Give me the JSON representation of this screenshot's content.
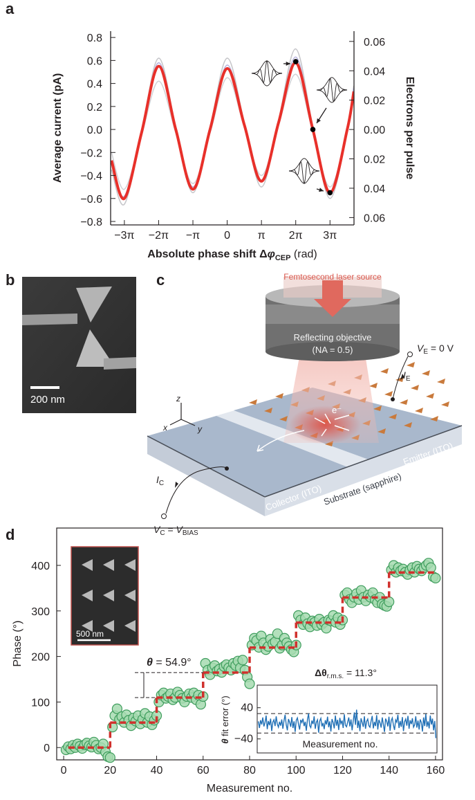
{
  "panel_labels": [
    "a",
    "b",
    "c",
    "d"
  ],
  "chart_data": [
    {
      "type": "line",
      "x_label": {
        "prefix": "Absolute phase shift Δ",
        "symbol": "φ",
        "sub": "CEP",
        "suffix": " (rad)"
      },
      "y_label": "Average current (pA)",
      "y2_label": "Electrons per pulse",
      "x": [
        -10.6,
        -9.42,
        -7.85,
        -6.28,
        -4.71,
        -3.14,
        -1.57,
        0,
        1.57,
        3.14,
        4.71,
        6.28,
        7.85,
        9.42,
        11.0,
        11.6
      ],
      "series": [
        {
          "color": "#d2d2d6",
          "values": [
            -0.2,
            -0.52,
            -0.05,
            0.42,
            -0.03,
            -0.47,
            -0.03,
            0.45,
            0.02,
            -0.4,
            0.04,
            0.48,
            -0.02,
            -0.5,
            -0.02,
            0.28
          ]
        },
        {
          "color": "#c6c6ca",
          "values": [
            -0.35,
            -0.65,
            -0.02,
            0.62,
            0.02,
            -0.55,
            0.02,
            0.62,
            0.06,
            -0.5,
            0.08,
            0.7,
            0.02,
            -0.6,
            0,
            0.38
          ]
        },
        {
          "color": "#b6b2de",
          "values": [
            -0.3,
            -0.58,
            -0.01,
            0.58,
            0.02,
            -0.5,
            0.01,
            0.56,
            0.05,
            -0.44,
            0.06,
            0.63,
            0.01,
            -0.57,
            0,
            0.36
          ]
        },
        {
          "color": "#e8302a",
          "values": [
            -0.27,
            -0.6,
            -0.03,
            0.55,
            0,
            -0.52,
            0,
            0.53,
            0.04,
            -0.45,
            0.06,
            0.58,
            0,
            -0.55,
            0,
            0.33
          ]
        }
      ],
      "points": {
        "x": [
          6.28,
          7.85,
          9.42
        ],
        "values": [
          0.59,
          0,
          -0.55
        ],
        "color": "#000000"
      },
      "xlim": [
        -10.68,
        11.62
      ],
      "ylim": [
        -0.83,
        0.855
      ],
      "y2lim": [
        -0.065,
        0.067
      ],
      "xticks": [
        {
          "value": -9.42,
          "label": "−3π"
        },
        {
          "value": -6.28,
          "label": "−2π"
        },
        {
          "value": -3.14,
          "label": "−π"
        },
        0,
        {
          "value": 3.14,
          "label": "π"
        },
        {
          "value": 6.28,
          "label": "2π"
        },
        {
          "value": 9.42,
          "label": "3π"
        }
      ],
      "yticks": [
        {
          "value": -0.8,
          "label": "−0.8"
        },
        {
          "value": -0.6,
          "label": "−0.6"
        },
        {
          "value": -0.4,
          "label": "−0.4"
        },
        {
          "value": -0.2,
          "label": "−0.2"
        },
        {
          "value": 0,
          "label": "0.0"
        },
        0.2,
        0.4,
        0.6,
        0.8
      ],
      "y2ticks": [
        {
          "value": -0.06,
          "label": "0.06"
        },
        {
          "value": -0.04,
          "label": "0.04"
        },
        {
          "value": -0.02,
          "label": "0.02"
        },
        {
          "value": 0,
          "label": "0.00"
        },
        0.02,
        0.04,
        0.06
      ]
    },
    {
      "type": "scatter",
      "x_label": "Measurement no.",
      "y_label": "Phase (°)",
      "x": [
        1,
        2,
        3,
        4,
        5,
        6,
        7,
        8,
        9,
        10,
        11,
        12,
        13,
        14,
        15,
        16,
        17,
        18,
        19,
        20,
        21,
        22,
        23,
        24,
        25,
        26,
        27,
        28,
        29,
        30,
        31,
        32,
        33,
        34,
        35,
        36,
        37,
        38,
        39,
        40,
        41,
        42,
        43,
        44,
        45,
        46,
        47,
        48,
        49,
        50,
        51,
        52,
        53,
        54,
        55,
        56,
        57,
        58,
        59,
        60,
        61,
        62,
        63,
        64,
        65,
        66,
        67,
        68,
        69,
        70,
        71,
        72,
        73,
        74,
        75,
        76,
        77,
        78,
        79,
        80,
        81,
        82,
        83,
        84,
        85,
        86,
        87,
        88,
        89,
        90,
        91,
        92,
        93,
        94,
        95,
        96,
        97,
        98,
        99,
        100,
        101,
        102,
        103,
        104,
        105,
        106,
        107,
        108,
        109,
        110,
        111,
        112,
        113,
        114,
        115,
        116,
        117,
        118,
        119,
        120,
        121,
        122,
        123,
        124,
        125,
        126,
        127,
        128,
        129,
        130,
        131,
        132,
        133,
        134,
        135,
        136,
        137,
        138,
        139,
        140,
        141,
        142,
        143,
        144,
        145,
        146,
        147,
        148,
        149,
        150,
        151,
        152,
        153,
        154,
        155,
        156,
        157,
        158,
        159,
        160
      ],
      "values": [
        -5,
        2,
        -3,
        5,
        0,
        8,
        3,
        -2,
        6,
        10,
        4,
        1,
        12,
        5,
        -3,
        0,
        8,
        -10,
        -20,
        -22,
        45,
        70,
        85,
        62,
        68,
        55,
        72,
        60,
        48,
        65,
        58,
        70,
        52,
        62,
        75,
        55,
        68,
        50,
        60,
        70,
        100,
        115,
        120,
        108,
        112,
        118,
        105,
        110,
        122,
        115,
        108,
        100,
        112,
        118,
        110,
        120,
        105,
        115,
        95,
        112,
        185,
        170,
        160,
        175,
        180,
        168,
        172,
        165,
        178,
        182,
        175,
        170,
        185,
        180,
        190,
        175,
        192,
        170,
        155,
        140,
        225,
        240,
        235,
        220,
        245,
        230,
        215,
        222,
        238,
        228,
        232,
        250,
        218,
        225,
        240,
        230,
        222,
        215,
        210,
        225,
        290,
        280,
        270,
        285,
        272,
        265,
        278,
        275,
        268,
        282,
        270,
        275,
        262,
        280,
        278,
        290,
        275,
        285,
        270,
        280,
        335,
        340,
        325,
        318,
        330,
        338,
        325,
        345,
        330,
        322,
        335,
        330,
        340,
        325,
        318,
        330,
        315,
        312,
        310,
        320,
        390,
        400,
        385,
        395,
        388,
        392,
        385,
        380,
        390,
        395,
        385,
        398,
        392,
        388,
        395,
        400,
        405,
        395,
        375,
        372
      ],
      "color": "#a6dbb0",
      "steps": {
        "bins": [
          2,
          20,
          40,
          60,
          80,
          100,
          120,
          140,
          160
        ],
        "values": [
          0,
          54.9,
          109.8,
          164.7,
          219.6,
          274.5,
          329.4,
          384.3
        ],
        "color": "#d0312d"
      },
      "annotation": {
        "symbol": "θ",
        "text": " = 54.9°"
      },
      "inset_scale_label": "500 nm",
      "xlim": [
        -3,
        163
      ],
      "ylim": [
        -27,
        482
      ],
      "xticks": [
        0,
        20,
        40,
        60,
        80,
        100,
        120,
        140,
        160
      ],
      "yticks": [
        0,
        100,
        200,
        300,
        400
      ]
    },
    {
      "type": "line",
      "title": {
        "prefix": "Δθ",
        "sub": "r.m.s.",
        "suffix": " = 11.3°"
      },
      "x_label": "Measurement no.",
      "y_label": {
        "symbol": "θ",
        "text": " fit error (°)"
      },
      "x": [
        1,
        2,
        3,
        4,
        5,
        6,
        7,
        8,
        9,
        10,
        11,
        12,
        13,
        14,
        15,
        16,
        17,
        18,
        19,
        20,
        21,
        22,
        23,
        24,
        25,
        26,
        27,
        28,
        29,
        30,
        31,
        32,
        33,
        34,
        35,
        36,
        37,
        38,
        39,
        40,
        41,
        42,
        43,
        44,
        45,
        46,
        47,
        48,
        49,
        50,
        51,
        52,
        53,
        54,
        55,
        56,
        57,
        58,
        59,
        60,
        61,
        62,
        63,
        64,
        65,
        66,
        67,
        68,
        69,
        70,
        71,
        72,
        73,
        74,
        75,
        76,
        77,
        78,
        79,
        80,
        81,
        82,
        83,
        84,
        85,
        86,
        87,
        88,
        89,
        90,
        91,
        92,
        93,
        94,
        95,
        96,
        97,
        98,
        99,
        100,
        101,
        102,
        103,
        104,
        105,
        106,
        107,
        108,
        109,
        110,
        111,
        112,
        113,
        114,
        115,
        116,
        117,
        118,
        119,
        120,
        121,
        122,
        123,
        124,
        125,
        126,
        127,
        128,
        129,
        130,
        131,
        132,
        133,
        134,
        135,
        136,
        137,
        138,
        139,
        140,
        141,
        142,
        143,
        144,
        145,
        146,
        147,
        148,
        149,
        150,
        151,
        152,
        153,
        154,
        155,
        156,
        157,
        158,
        159,
        160
      ],
      "values": [
        5,
        -12,
        8,
        -3,
        15,
        -8,
        2,
        20,
        -15,
        6,
        -5,
        12,
        -20,
        3,
        9,
        -7,
        18,
        -2,
        -10,
        4,
        -6,
        10,
        -14,
        7,
        22,
        -4,
        -18,
        11,
        3,
        -9,
        16,
        -12,
        5,
        -22,
        8,
        14,
        -3,
        -16,
        9,
        2,
        12,
        -7,
        4,
        -19,
        10,
        25,
        -6,
        -11,
        7,
        -2,
        18,
        -14,
        3,
        9,
        -24,
        6,
        13,
        -8,
        1,
        -15,
        8,
        -3,
        17,
        -10,
        5,
        -21,
        11,
        2,
        -13,
        20,
        -6,
        9,
        -17,
        14,
        -1,
        7,
        -12,
        23,
        -5,
        -9,
        3,
        15,
        -8,
        10,
        -18,
        6,
        28,
        -4,
        35,
        -12,
        7,
        -20,
        13,
        2,
        -9,
        18,
        -14,
        5,
        11,
        -6,
        -10,
        6,
        19,
        -13,
        4,
        -7,
        21,
        -16,
        9,
        1,
        -11,
        15,
        -3,
        -22,
        12,
        5,
        -8,
        17,
        -19,
        7,
        14,
        -5,
        -17,
        9,
        3,
        22,
        -12,
        6,
        -9,
        16,
        -20,
        4,
        11,
        -6,
        19,
        -14,
        8,
        -2,
        13,
        -10,
        -4,
        18,
        -11,
        7,
        -16,
        10,
        2,
        -21,
        15,
        -7,
        24,
        -9,
        5,
        -13,
        20,
        -3,
        12,
        -18,
        6,
        -38
      ],
      "color": "#1f6fb5",
      "reference_lines": [
        25,
        -25
      ],
      "xlim": [
        0,
        161
      ],
      "ylim": [
        -76,
        98
      ],
      "yticks": [
        {
          "value": -40,
          "label": "−40"
        },
        40
      ]
    }
  ],
  "panel_b": {
    "scale_label": "200 nm"
  },
  "panel_c": {
    "laser": "Femtosecond laser source",
    "objective": "Reflecting objective",
    "na": "(NA = 0.5)",
    "v_e": {
      "symbol": "V",
      "sub": "E",
      "text": " = 0 V"
    },
    "i_e": {
      "symbol": "I",
      "sub": "E"
    },
    "electron": "e⁻",
    "axes": {
      "z": "z",
      "x": "x",
      "y": "y"
    },
    "emitter": "Emitter (ITO)",
    "collector": "Collector (ITO)",
    "substrate": "Substrate (sapphire)",
    "i_c": {
      "symbol": "I",
      "sub": "C"
    },
    "v_c": {
      "symbol": "V",
      "sub": "C",
      "mid": " = ",
      "symbol2": "V",
      "sub2": "BIAS"
    }
  }
}
